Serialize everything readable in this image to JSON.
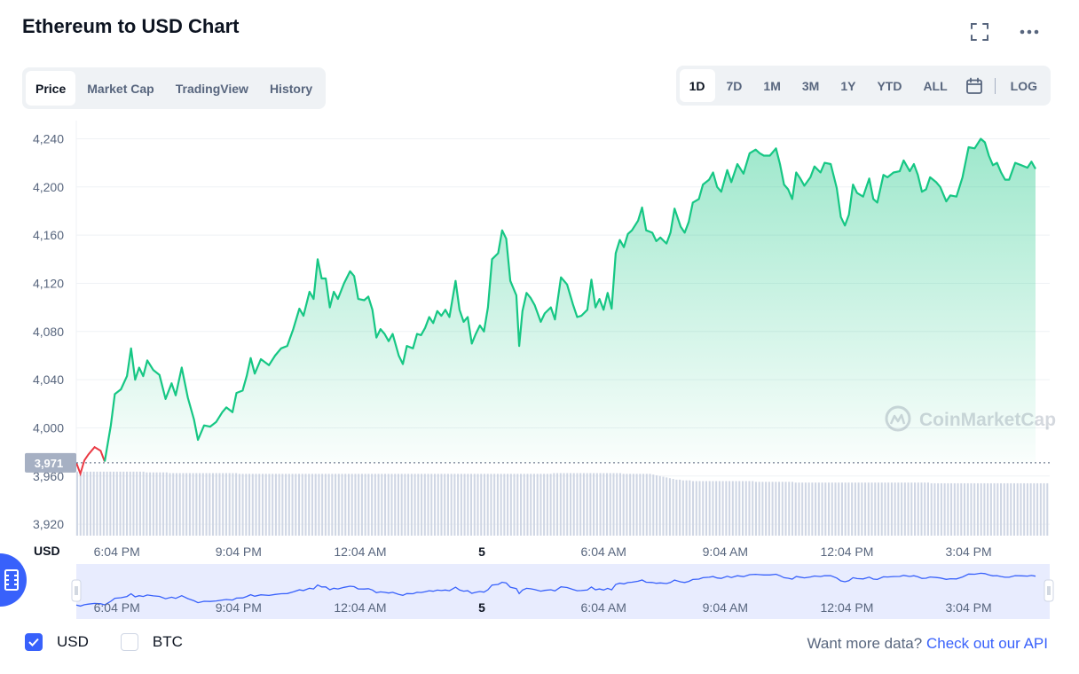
{
  "header": {
    "title": "Ethereum to USD Chart"
  },
  "icons": {
    "fullscreen": "fullscreen-icon",
    "more": "more-icon",
    "calendar": "calendar-icon",
    "film": "film-icon"
  },
  "tabs": [
    {
      "label": "Price",
      "active": true
    },
    {
      "label": "Market Cap",
      "active": false
    },
    {
      "label": "TradingView",
      "active": false
    },
    {
      "label": "History",
      "active": false
    }
  ],
  "ranges": [
    {
      "label": "1D",
      "active": true
    },
    {
      "label": "7D",
      "active": false
    },
    {
      "label": "1M",
      "active": false
    },
    {
      "label": "3M",
      "active": false
    },
    {
      "label": "1Y",
      "active": false
    },
    {
      "label": "YTD",
      "active": false
    },
    {
      "label": "ALL",
      "active": false
    }
  ],
  "log_label": "LOG",
  "watermark": "CoinMarketCap",
  "currency_checkboxes": [
    {
      "label": "USD",
      "checked": true
    },
    {
      "label": "BTC",
      "checked": false
    }
  ],
  "more_data": {
    "text": "Want more data?",
    "link": "Check out our API"
  },
  "colors": {
    "line": "#16c784",
    "down": "#ea3943",
    "accent": "#3861fb",
    "price_tag": "#a6b0c3"
  },
  "chart_data": {
    "type": "area",
    "currency_label": "USD",
    "current_price": 3971,
    "current_price_label": "3,971",
    "y_ticks": [
      4240,
      4200,
      4160,
      4120,
      4080,
      4040,
      4000,
      3960,
      3920
    ],
    "y_tick_labels": [
      "4,240",
      "4,200",
      "4,160",
      "4,120",
      "4,080",
      "4,040",
      "4,000",
      "3,960",
      "3,920"
    ],
    "ylim": [
      3912,
      4258
    ],
    "grid": true,
    "x_tick_labels": [
      "6:04 PM",
      "9:04 PM",
      "12:04 AM",
      "5",
      "6:04 AM",
      "9:04 AM",
      "12:04 PM",
      "3:04 PM"
    ],
    "x_ticks_hours": [
      1,
      4,
      7,
      10,
      13,
      16,
      19,
      22
    ],
    "x_range_hours": [
      0,
      24
    ],
    "series": [
      {
        "values": [
          [
            0.0,
            3971
          ],
          [
            0.1,
            3962
          ],
          [
            0.2,
            3973
          ],
          [
            0.3,
            3978
          ],
          [
            0.45,
            3984
          ],
          [
            0.6,
            3981
          ],
          [
            0.7,
            3972
          ],
          [
            0.85,
            4002
          ],
          [
            0.95,
            4028
          ],
          [
            1.1,
            4032
          ],
          [
            1.25,
            4043
          ],
          [
            1.35,
            4066
          ],
          [
            1.45,
            4040
          ],
          [
            1.55,
            4050
          ],
          [
            1.65,
            4043
          ],
          [
            1.75,
            4056
          ],
          [
            1.9,
            4048
          ],
          [
            2.05,
            4044
          ],
          [
            2.2,
            4024
          ],
          [
            2.35,
            4037
          ],
          [
            2.45,
            4027
          ],
          [
            2.6,
            4050
          ],
          [
            2.75,
            4025
          ],
          [
            2.9,
            4007
          ],
          [
            3.0,
            3990
          ],
          [
            3.15,
            4002
          ],
          [
            3.3,
            4001
          ],
          [
            3.45,
            4005
          ],
          [
            3.6,
            4013
          ],
          [
            3.7,
            4017
          ],
          [
            3.85,
            4013
          ],
          [
            3.95,
            4029
          ],
          [
            4.1,
            4031
          ],
          [
            4.2,
            4043
          ],
          [
            4.3,
            4058
          ],
          [
            4.4,
            4045
          ],
          [
            4.55,
            4057
          ],
          [
            4.75,
            4052
          ],
          [
            4.9,
            4060
          ],
          [
            5.05,
            4066
          ],
          [
            5.2,
            4068
          ],
          [
            5.35,
            4082
          ],
          [
            5.5,
            4099
          ],
          [
            5.6,
            4093
          ],
          [
            5.75,
            4113
          ],
          [
            5.85,
            4107
          ],
          [
            5.95,
            4140
          ],
          [
            6.05,
            4124
          ],
          [
            6.15,
            4124
          ],
          [
            6.25,
            4100
          ],
          [
            6.35,
            4113
          ],
          [
            6.45,
            4107
          ],
          [
            6.6,
            4120
          ],
          [
            6.75,
            4130
          ],
          [
            6.85,
            4126
          ],
          [
            6.95,
            4107
          ],
          [
            7.1,
            4106
          ],
          [
            7.2,
            4109
          ],
          [
            7.3,
            4098
          ],
          [
            7.4,
            4075
          ],
          [
            7.5,
            4082
          ],
          [
            7.6,
            4078
          ],
          [
            7.7,
            4072
          ],
          [
            7.8,
            4078
          ],
          [
            7.95,
            4060
          ],
          [
            8.05,
            4053
          ],
          [
            8.15,
            4068
          ],
          [
            8.3,
            4066
          ],
          [
            8.4,
            4078
          ],
          [
            8.5,
            4077
          ],
          [
            8.6,
            4083
          ],
          [
            8.7,
            4092
          ],
          [
            8.8,
            4087
          ],
          [
            8.9,
            4097
          ],
          [
            9.0,
            4093
          ],
          [
            9.1,
            4098
          ],
          [
            9.2,
            4092
          ],
          [
            9.35,
            4122
          ],
          [
            9.45,
            4098
          ],
          [
            9.55,
            4088
          ],
          [
            9.65,
            4092
          ],
          [
            9.75,
            4070
          ],
          [
            9.85,
            4078
          ],
          [
            9.95,
            4085
          ],
          [
            10.05,
            4080
          ],
          [
            10.15,
            4100
          ],
          [
            10.25,
            4140
          ],
          [
            10.4,
            4145
          ],
          [
            10.5,
            4164
          ],
          [
            10.6,
            4157
          ],
          [
            10.7,
            4122
          ],
          [
            10.85,
            4110
          ],
          [
            10.92,
            4068
          ],
          [
            11.0,
            4097
          ],
          [
            11.1,
            4112
          ],
          [
            11.2,
            4108
          ],
          [
            11.3,
            4102
          ],
          [
            11.45,
            4088
          ],
          [
            11.55,
            4095
          ],
          [
            11.7,
            4100
          ],
          [
            11.8,
            4090
          ],
          [
            11.95,
            4125
          ],
          [
            12.1,
            4119
          ],
          [
            12.25,
            4102
          ],
          [
            12.35,
            4092
          ],
          [
            12.45,
            4093
          ],
          [
            12.6,
            4098
          ],
          [
            12.7,
            4123
          ],
          [
            12.8,
            4100
          ],
          [
            12.9,
            4107
          ],
          [
            13.0,
            4098
          ],
          [
            13.1,
            4112
          ],
          [
            13.2,
            4099
          ],
          [
            13.3,
            4145
          ],
          [
            13.4,
            4156
          ],
          [
            13.5,
            4150
          ],
          [
            13.6,
            4161
          ],
          [
            13.7,
            4164
          ],
          [
            13.85,
            4172
          ],
          [
            13.95,
            4183
          ],
          [
            14.05,
            4164
          ],
          [
            14.2,
            4162
          ],
          [
            14.3,
            4155
          ],
          [
            14.4,
            4158
          ],
          [
            14.55,
            4153
          ],
          [
            14.65,
            4162
          ],
          [
            14.75,
            4182
          ],
          [
            14.9,
            4167
          ],
          [
            15.0,
            4162
          ],
          [
            15.1,
            4171
          ],
          [
            15.2,
            4187
          ],
          [
            15.35,
            4190
          ],
          [
            15.45,
            4202
          ],
          [
            15.6,
            4206
          ],
          [
            15.7,
            4212
          ],
          [
            15.8,
            4200
          ],
          [
            15.9,
            4196
          ],
          [
            16.05,
            4214
          ],
          [
            16.15,
            4204
          ],
          [
            16.3,
            4219
          ],
          [
            16.45,
            4211
          ],
          [
            16.6,
            4228
          ],
          [
            16.75,
            4231
          ],
          [
            16.85,
            4228
          ],
          [
            16.95,
            4226
          ],
          [
            17.1,
            4226
          ],
          [
            17.25,
            4232
          ],
          [
            17.35,
            4219
          ],
          [
            17.45,
            4202
          ],
          [
            17.55,
            4198
          ],
          [
            17.65,
            4190
          ],
          [
            17.75,
            4212
          ],
          [
            17.85,
            4207
          ],
          [
            17.95,
            4201
          ],
          [
            18.1,
            4208
          ],
          [
            18.2,
            4217
          ],
          [
            18.35,
            4212
          ],
          [
            18.45,
            4220
          ],
          [
            18.6,
            4219
          ],
          [
            18.75,
            4199
          ],
          [
            18.85,
            4175
          ],
          [
            18.95,
            4168
          ],
          [
            19.05,
            4177
          ],
          [
            19.15,
            4202
          ],
          [
            19.25,
            4195
          ],
          [
            19.4,
            4192
          ],
          [
            19.55,
            4207
          ],
          [
            19.65,
            4190
          ],
          [
            19.75,
            4187
          ],
          [
            19.9,
            4210
          ],
          [
            20.0,
            4208
          ],
          [
            20.15,
            4212
          ],
          [
            20.3,
            4213
          ],
          [
            20.4,
            4222
          ],
          [
            20.55,
            4213
          ],
          [
            20.65,
            4219
          ],
          [
            20.75,
            4210
          ],
          [
            20.85,
            4196
          ],
          [
            20.95,
            4198
          ],
          [
            21.05,
            4208
          ],
          [
            21.2,
            4204
          ],
          [
            21.3,
            4200
          ],
          [
            21.45,
            4188
          ],
          [
            21.55,
            4193
          ],
          [
            21.7,
            4192
          ],
          [
            21.85,
            4208
          ],
          [
            22.0,
            4233
          ],
          [
            22.15,
            4232
          ],
          [
            22.3,
            4240
          ],
          [
            22.4,
            4237
          ],
          [
            22.5,
            4226
          ],
          [
            22.6,
            4218
          ],
          [
            22.7,
            4220
          ],
          [
            22.8,
            4212
          ],
          [
            22.9,
            4206
          ],
          [
            23.0,
            4206
          ],
          [
            23.15,
            4220
          ],
          [
            23.3,
            4218
          ],
          [
            23.45,
            4216
          ],
          [
            23.55,
            4221
          ],
          [
            23.65,
            4215
          ]
        ]
      }
    ],
    "volume": {
      "values": [
        0.88,
        0.88,
        0.88,
        0.88,
        0.88,
        0.88,
        0.88,
        0.88,
        0.88,
        0.88,
        0.88,
        0.88,
        0.88,
        0.88,
        0.88,
        0.88,
        0.88,
        0.88,
        0.88,
        0.88,
        0.88,
        0.87,
        0.87,
        0.87,
        0.87,
        0.87,
        0.87,
        0.87,
        0.86,
        0.86,
        0.86,
        0.86,
        0.86,
        0.86,
        0.86,
        0.86,
        0.86,
        0.86,
        0.86,
        0.86,
        0.86,
        0.86,
        0.86,
        0.86,
        0.86,
        0.86,
        0.86,
        0.86,
        0.86,
        0.85,
        0.85,
        0.85,
        0.85,
        0.85,
        0.85,
        0.85,
        0.85,
        0.85,
        0.85,
        0.85,
        0.85,
        0.85,
        0.85,
        0.85,
        0.85,
        0.85,
        0.85,
        0.85,
        0.85,
        0.85,
        0.85,
        0.85,
        0.85,
        0.85,
        0.85,
        0.85,
        0.85,
        0.85,
        0.85,
        0.85,
        0.85,
        0.85,
        0.85,
        0.85,
        0.85,
        0.85,
        0.85,
        0.85,
        0.85,
        0.85,
        0.85,
        0.85,
        0.85,
        0.85,
        0.85,
        0.85,
        0.85,
        0.85,
        0.85,
        0.85,
        0.85,
        0.85,
        0.85,
        0.85,
        0.85,
        0.85,
        0.85,
        0.85,
        0.85,
        0.85,
        0.85,
        0.85,
        0.85,
        0.85,
        0.85,
        0.85,
        0.85,
        0.85,
        0.85,
        0.85,
        0.85,
        0.85,
        0.85,
        0.85,
        0.85,
        0.85,
        0.85,
        0.85,
        0.85,
        0.85,
        0.85,
        0.85,
        0.85,
        0.85,
        0.85,
        0.85,
        0.85,
        0.85,
        0.85,
        0.85,
        0.85,
        0.85,
        0.85,
        0.85,
        0.86,
        0.86,
        0.86,
        0.86,
        0.86,
        0.86,
        0.86,
        0.86,
        0.86,
        0.86,
        0.86,
        0.86,
        0.86,
        0.86,
        0.86,
        0.86,
        0.86,
        0.86,
        0.86,
        0.86,
        0.86,
        0.85,
        0.85,
        0.85,
        0.85,
        0.85,
        0.85,
        0.85,
        0.85,
        0.85,
        0.84,
        0.83,
        0.82,
        0.81,
        0.8,
        0.79,
        0.78,
        0.77,
        0.77,
        0.76,
        0.76,
        0.76,
        0.75,
        0.75,
        0.75,
        0.75,
        0.75,
        0.75,
        0.75,
        0.75,
        0.75,
        0.75,
        0.75,
        0.75,
        0.75,
        0.75,
        0.75,
        0.75,
        0.75,
        0.75,
        0.75,
        0.74,
        0.74,
        0.74,
        0.74,
        0.74,
        0.74,
        0.74,
        0.74,
        0.74,
        0.74,
        0.74,
        0.74,
        0.73,
        0.73,
        0.73,
        0.73,
        0.73,
        0.73,
        0.73,
        0.73,
        0.73,
        0.73,
        0.73,
        0.73,
        0.73,
        0.73,
        0.73,
        0.73,
        0.73,
        0.73,
        0.73,
        0.73,
        0.73,
        0.73,
        0.73,
        0.73,
        0.73,
        0.73,
        0.73,
        0.73,
        0.73,
        0.73,
        0.73,
        0.73,
        0.73,
        0.73,
        0.73,
        0.73,
        0.73,
        0.73,
        0.73,
        0.73,
        0.73,
        0.72,
        0.72,
        0.72,
        0.72,
        0.72,
        0.72,
        0.72,
        0.72,
        0.72,
        0.72,
        0.72,
        0.72,
        0.72,
        0.72,
        0.72,
        0.72,
        0.72,
        0.72,
        0.72,
        0.72,
        0.72,
        0.72,
        0.72,
        0.72,
        0.72,
        0.72,
        0.72,
        0.72,
        0.72,
        0.72,
        0.72,
        0.72,
        0.72,
        0.72,
        0.72,
        0.72
      ]
    }
  }
}
